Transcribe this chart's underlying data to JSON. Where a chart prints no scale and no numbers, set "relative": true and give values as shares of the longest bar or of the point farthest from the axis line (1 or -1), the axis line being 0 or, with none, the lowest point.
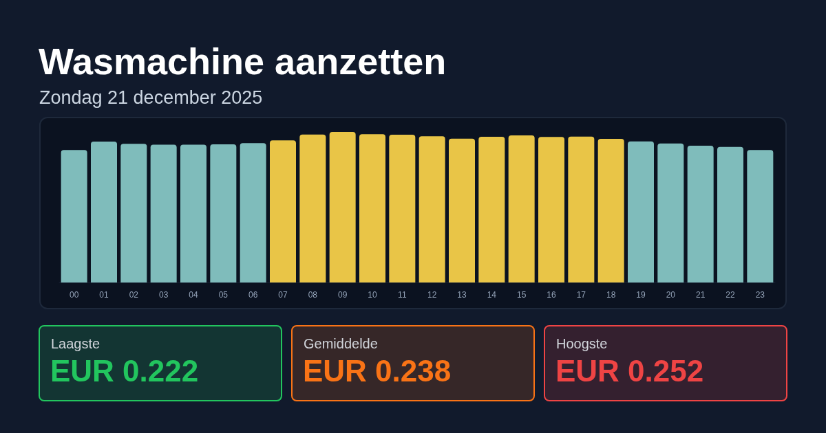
{
  "chart_data": [
    {
      "type": "bar",
      "title": "Wasmachine aanzetten",
      "subtitle": "Zondag 21 december 2025",
      "categories": [
        "00",
        "01",
        "02",
        "03",
        "04",
        "05",
        "06",
        "07",
        "08",
        "09",
        "10",
        "11",
        "12",
        "13",
        "14",
        "15",
        "16",
        "17",
        "18",
        "19",
        "20",
        "21",
        "22",
        "23"
      ],
      "values": [
        0.88,
        0.936,
        0.921,
        0.915,
        0.915,
        0.918,
        0.926,
        0.944,
        0.983,
        1,
        0.985,
        0.982,
        0.971,
        0.956,
        0.968,
        0.977,
        0.967,
        0.969,
        0.954,
        0.937,
        0.924,
        0.909,
        0.901,
        0.88
      ],
      "colors": [
        "#7fbcbb",
        "#7fbcbb",
        "#7fbcbb",
        "#7fbcbb",
        "#7fbcbb",
        "#7fbcbb",
        "#7fbcbb",
        "#e9c547",
        "#e9c547",
        "#e9c547",
        "#e9c547",
        "#e9c547",
        "#e9c547",
        "#e9c547",
        "#e9c547",
        "#e9c547",
        "#e9c547",
        "#e9c547",
        "#e9c547",
        "#7fbcbb",
        "#7fbcbb",
        "#7fbcbb",
        "#7fbcbb",
        "#7fbcbb"
      ],
      "relative": true
    },
    {
      "type": "other",
      "title": "Laagste",
      "annotations": [
        "EUR 0.222"
      ],
      "color": "#22c55e"
    },
    {
      "type": "other",
      "title": "Gemiddelde",
      "annotations": [
        "EUR 0.238"
      ],
      "color": "#f97316"
    },
    {
      "type": "other",
      "title": "Hoogste",
      "annotations": [
        "EUR 0.252"
      ],
      "color": "#ef4444"
    }
  ]
}
